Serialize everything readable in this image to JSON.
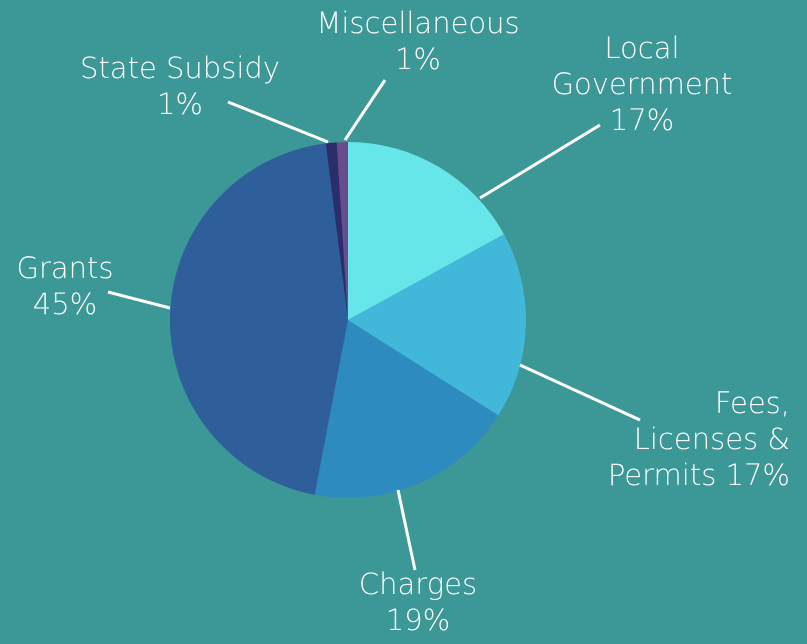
{
  "chart_data": {
    "type": "pie",
    "categories": [
      "Local Government",
      "Fees, Licenses & Permits",
      "Charges",
      "Grants",
      "State Subsidy",
      "Miscellaneous"
    ],
    "values": [
      17,
      17,
      19,
      45,
      1,
      1
    ],
    "value_labels": [
      "17%",
      "17%",
      "19%",
      "45%",
      "1%",
      "1%"
    ],
    "colors": [
      "#67e6ea",
      "#41b8d9",
      "#2e8bbf",
      "#2e5f9a",
      "#2a2f6b",
      "#6b4b8c"
    ]
  }
}
